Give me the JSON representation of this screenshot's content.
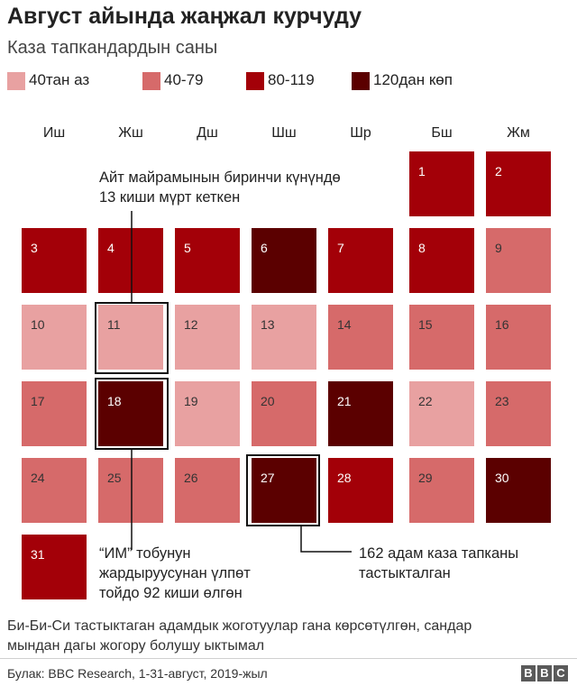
{
  "header": {
    "title": "Август айында жаңжал курчуду",
    "subtitle": "Каза тапкандардын саны"
  },
  "legend": [
    {
      "label": "40тан аз",
      "color": "#e8a1a1"
    },
    {
      "label": "40-79",
      "color": "#d66a6a"
    },
    {
      "label": "80-119",
      "color": "#a30008"
    },
    {
      "label": "120дан көп",
      "color": "#5b0000"
    }
  ],
  "weekdays": [
    "Иш",
    "Жш",
    "Дш",
    "Шш",
    "Шр",
    "Бш",
    "Жм"
  ],
  "chart_data": {
    "type": "heatmap",
    "title": "Август айында жаңжал курчуду",
    "subtitle": "Каза тапкандардын саны",
    "first_day_column": 5,
    "categories": [
      "40тан аз",
      "40-79",
      "80-119",
      "120дан көп"
    ],
    "days": [
      {
        "day": "1",
        "level": 2
      },
      {
        "day": "2",
        "level": 2
      },
      {
        "day": "3",
        "level": 2
      },
      {
        "day": "4",
        "level": 2
      },
      {
        "day": "5",
        "level": 2
      },
      {
        "day": "6",
        "level": 3
      },
      {
        "day": "7",
        "level": 2
      },
      {
        "day": "8",
        "level": 2
      },
      {
        "day": "9",
        "level": 1
      },
      {
        "day": "10",
        "level": 0
      },
      {
        "day": "11",
        "level": 0
      },
      {
        "day": "12",
        "level": 0
      },
      {
        "day": "13",
        "level": 0
      },
      {
        "day": "14",
        "level": 1
      },
      {
        "day": "15",
        "level": 1
      },
      {
        "day": "16",
        "level": 1
      },
      {
        "day": "17",
        "level": 1
      },
      {
        "day": "18",
        "level": 3
      },
      {
        "day": "19",
        "level": 0
      },
      {
        "day": "20",
        "level": 1
      },
      {
        "day": "21",
        "level": 3
      },
      {
        "day": "22",
        "level": 0
      },
      {
        "day": "23",
        "level": 1
      },
      {
        "day": "24",
        "level": 1
      },
      {
        "day": "25",
        "level": 1
      },
      {
        "day": "26",
        "level": 1
      },
      {
        "day": "27",
        "level": 3
      },
      {
        "day": "28",
        "level": 2
      },
      {
        "day": "29",
        "level": 1
      },
      {
        "day": "30",
        "level": 3
      },
      {
        "day": "31",
        "level": 2
      }
    ],
    "highlighted_days": [
      "11",
      "18",
      "27"
    ]
  },
  "annotations": {
    "eid_line1": "Айт майрамынын биринчи күнүндө",
    "eid_line2": "13 киши мүрт кеткен",
    "wedding_line1": "“ИМ” тобунун",
    "wedding_line2": "жардыруусунан үлпөт",
    "wedding_line3": "тойдо 92 киши өлгөн",
    "day27_line1": "162 адам каза тапканы",
    "day27_line2": "тастыкталган"
  },
  "note": {
    "line1": "Би-Би-Си тастыктаган адамдык жоготуулар гана көрсөтүлгөн, сандар",
    "line2": "мындан дагы жогору болушу ыктымал"
  },
  "footer": {
    "source": "Булак: BBC Research, 1-31-август, 2019-жыл",
    "logo_letters": [
      "B",
      "B",
      "C"
    ]
  }
}
